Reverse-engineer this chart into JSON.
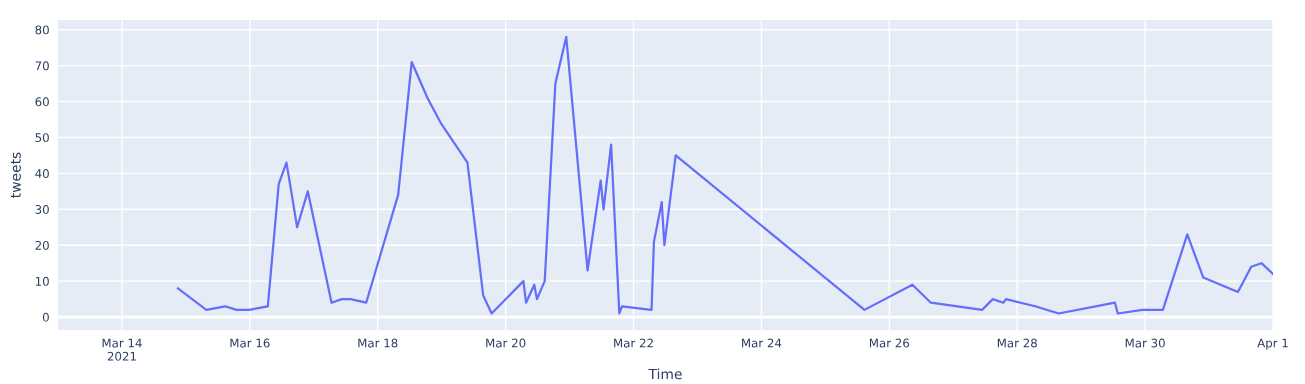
{
  "chart_data": {
    "type": "line",
    "xlabel": "Time",
    "ylabel": "tweets",
    "grid": true,
    "marker": "none",
    "line_style": "solid",
    "xlim": [
      "2021-03-13T00:00",
      "2021-04-01T00:00"
    ],
    "xticks": [
      {
        "value": "2021-03-14",
        "label": "Mar 14\n2021"
      },
      {
        "value": "2021-03-16",
        "label": "Mar 16"
      },
      {
        "value": "2021-03-18",
        "label": "Mar 18"
      },
      {
        "value": "2021-03-20",
        "label": "Mar 20"
      },
      {
        "value": "2021-03-22",
        "label": "Mar 22"
      },
      {
        "value": "2021-03-24",
        "label": "Mar 24"
      },
      {
        "value": "2021-03-26",
        "label": "Mar 26"
      },
      {
        "value": "2021-03-28",
        "label": "Mar 28"
      },
      {
        "value": "2021-03-30",
        "label": "Mar 30"
      },
      {
        "value": "2021-04-01",
        "label": "Apr 1"
      }
    ],
    "ylim": [
      -3.6,
      82.7
    ],
    "yticks": [
      0,
      10,
      20,
      30,
      40,
      50,
      60,
      70,
      80
    ],
    "series": [
      {
        "color": "#636efa",
        "x": [
          "2021-03-14T21:00",
          "2021-03-15T07:40",
          "2021-03-15T14:40",
          "2021-03-15T19:00",
          "2021-03-15T23:45",
          "2021-03-16T06:45",
          "2021-03-16T10:50",
          "2021-03-16T13:45",
          "2021-03-16T17:45",
          "2021-03-16T21:45",
          "2021-03-17T06:40",
          "2021-03-17T10:30",
          "2021-03-17T13:50",
          "2021-03-17T19:40",
          "2021-03-18T07:40",
          "2021-03-18T12:45",
          "2021-03-18T18:40",
          "2021-03-18T23:40",
          "2021-03-19T09:40",
          "2021-03-19T15:35",
          "2021-03-19T18:45",
          "2021-03-20T06:40",
          "2021-03-20T07:40",
          "2021-03-20T10:45",
          "2021-03-20T11:45",
          "2021-03-20T14:40",
          "2021-03-20T18:40",
          "2021-03-20T22:45",
          "2021-03-21T06:45",
          "2021-03-21T11:40",
          "2021-03-21T12:45",
          "2021-03-21T15:35",
          "2021-03-21T18:40",
          "2021-03-21T19:40",
          "2021-03-22T06:45",
          "2021-03-22T07:40",
          "2021-03-22T10:35",
          "2021-03-22T11:35",
          "2021-03-22T15:50",
          "2021-03-25T14:40",
          "2021-03-26T08:40",
          "2021-03-26T15:35",
          "2021-03-27T10:50",
          "2021-03-27T14:50",
          "2021-03-27T18:45",
          "2021-03-27T19:50",
          "2021-03-28T06:45",
          "2021-03-28T15:35",
          "2021-03-29T12:40",
          "2021-03-29T13:45",
          "2021-03-29T23:00",
          "2021-03-30T06:40",
          "2021-03-30T15:50",
          "2021-03-30T21:50",
          "2021-03-31T10:50",
          "2021-03-31T15:50",
          "2021-03-31T19:40",
          "2021-04-01T00:00"
        ],
        "values": [
          8,
          2,
          3,
          2,
          2,
          3,
          37,
          43,
          25,
          35,
          4,
          5,
          5,
          4,
          34,
          71,
          61,
          54,
          43,
          6,
          1,
          10,
          4,
          9,
          5,
          10,
          65,
          78,
          13,
          38,
          30,
          48,
          1,
          3,
          2,
          21,
          32,
          20,
          45,
          2,
          9,
          4,
          2,
          5,
          4,
          5,
          3,
          1,
          4,
          1,
          2,
          2,
          23,
          11,
          7,
          14,
          15,
          12
        ]
      }
    ]
  }
}
